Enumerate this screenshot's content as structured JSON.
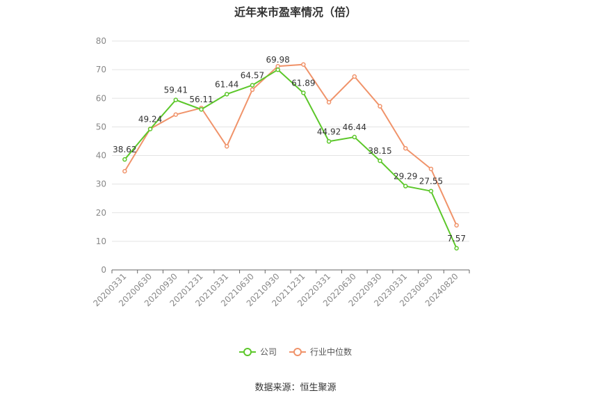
{
  "title": "近年来市盈率情况（倍）",
  "source": "数据来源：恒生聚源",
  "legend": {
    "company": "公司",
    "industry": "行业中位数"
  },
  "colors": {
    "company": "#5cc72a",
    "industry": "#f0936a",
    "grid": "#e3e3e3",
    "axis": "#666666"
  },
  "chart_data": {
    "type": "line",
    "x": [
      "20200331",
      "20200630",
      "20200930",
      "20201231",
      "20210331",
      "20210630",
      "20210930",
      "20211231",
      "20220331",
      "20220630",
      "20220930",
      "20230331",
      "20230630",
      "20240820"
    ],
    "ylim": [
      0,
      80
    ],
    "yticks": [
      0,
      10,
      20,
      30,
      40,
      50,
      60,
      70,
      80
    ],
    "grid": true,
    "legend_position": "bottom",
    "series": [
      {
        "name": "公司",
        "values": [
          38.62,
          49.24,
          59.41,
          56.11,
          61.44,
          64.57,
          69.98,
          61.89,
          44.92,
          46.44,
          38.15,
          29.29,
          27.55,
          7.57
        ],
        "labels": [
          "38.62",
          "49.24",
          "59.41",
          "56.11",
          "61.44",
          "64.57",
          "69.98",
          "61.89",
          "44.92",
          "46.44",
          "38.15",
          "29.29",
          "27.55",
          "7.57"
        ]
      },
      {
        "name": "行业中位数",
        "values": [
          34.5,
          49.3,
          54.3,
          56.6,
          43.2,
          63.0,
          71.2,
          71.8,
          58.6,
          67.6,
          57.2,
          42.5,
          35.3,
          15.6
        ]
      }
    ]
  }
}
